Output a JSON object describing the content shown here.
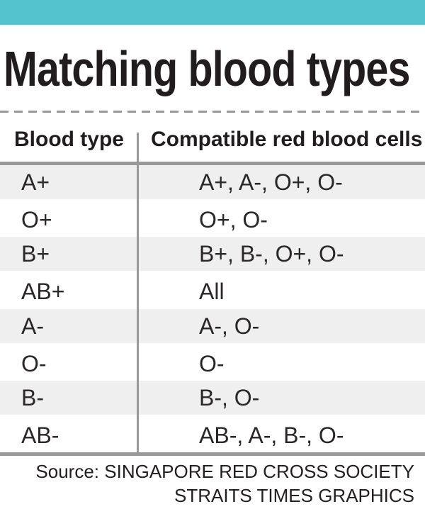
{
  "title": "Matching blood types",
  "table": {
    "col1_header": "Blood type",
    "col2_header": "Compatible red blood cells",
    "rows": [
      {
        "blood_type": "A+",
        "compatible": "A+, A-, O+, O-"
      },
      {
        "blood_type": "O+",
        "compatible": "O+, O-"
      },
      {
        "blood_type": "B+",
        "compatible": "B+, B-, O+, O-"
      },
      {
        "blood_type": "AB+",
        "compatible": "All"
      },
      {
        "blood_type": "A-",
        "compatible": "A-, O-"
      },
      {
        "blood_type": "O-",
        "compatible": "O-"
      },
      {
        "blood_type": "B-",
        "compatible": "B-, O-"
      },
      {
        "blood_type": "AB-",
        "compatible": "AB-, A-, B-, O-"
      }
    ]
  },
  "source": {
    "line1": "Source: SINGAPORE RED CROSS SOCIETY",
    "line2": "STRAITS TIMES GRAPHICS"
  },
  "colors": {
    "accent_teal": "#55c3ce",
    "row_stripe": "#efefef",
    "rule_gray": "#999999",
    "text_ink": "#231f20"
  }
}
